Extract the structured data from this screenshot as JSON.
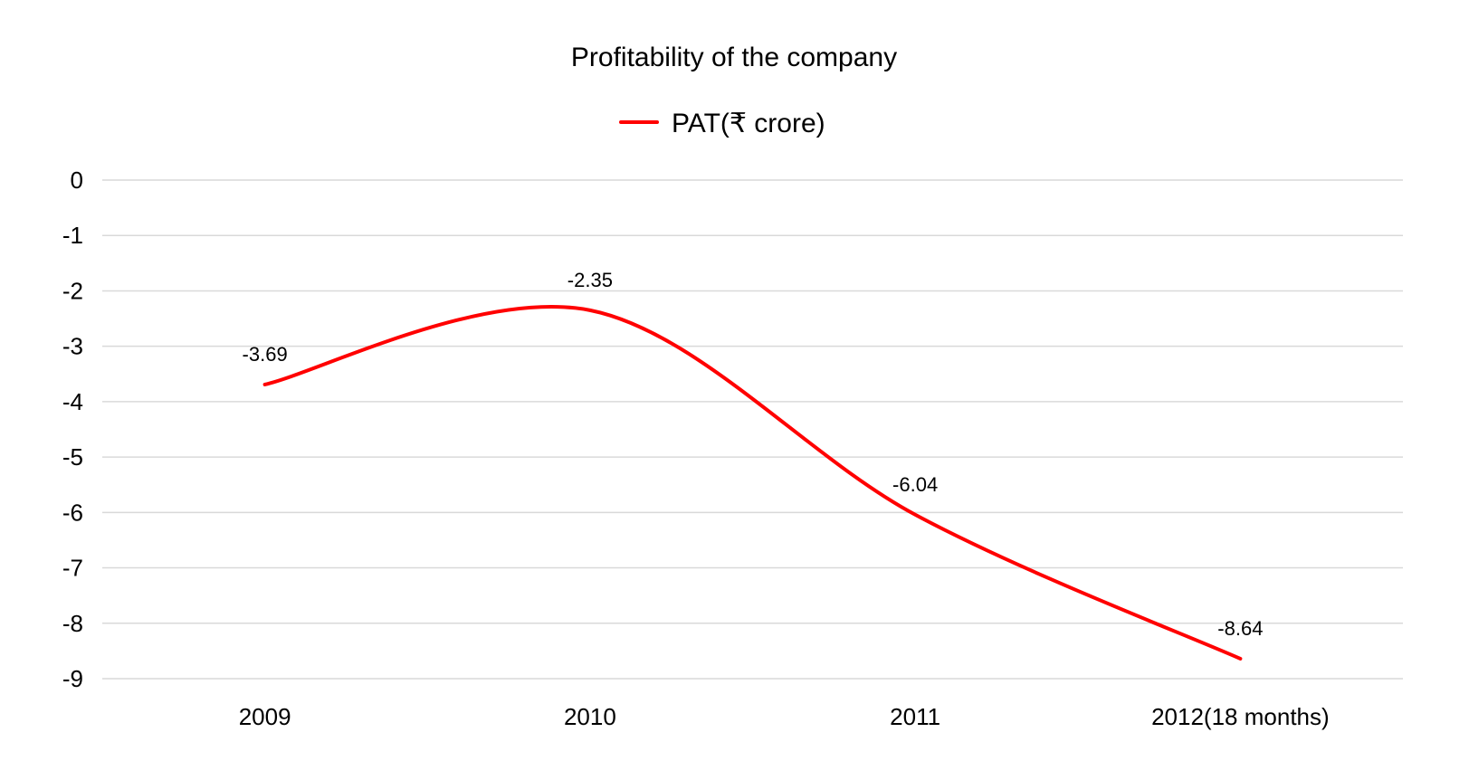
{
  "chart_data": {
    "type": "line",
    "title": "Profitability of the company",
    "categories": [
      "2009",
      "2010",
      "2011",
      "2012(18 months)"
    ],
    "series": [
      {
        "name": "PAT(₹ crore)",
        "values": [
          -3.69,
          -2.35,
          -6.04,
          -8.64
        ],
        "color": "#ff0000",
        "smooth": true
      }
    ],
    "data_labels": [
      "-3.69",
      "-2.35",
      "-6.04",
      "-8.64"
    ],
    "ylim": [
      -9,
      0
    ],
    "yticks": [
      0,
      -1,
      -2,
      -3,
      -4,
      -5,
      -6,
      -7,
      -8,
      -9
    ],
    "ytick_labels": [
      "0",
      "-1",
      "-2",
      "-3",
      "-4",
      "-5",
      "-6",
      "-7",
      "-8",
      "-9"
    ],
    "xlabel": "",
    "ylabel": "",
    "grid": true,
    "legend_position": "top"
  }
}
